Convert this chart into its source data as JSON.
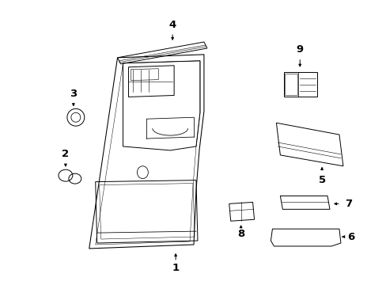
{
  "bg_color": "#ffffff",
  "fig_width": 4.89,
  "fig_height": 3.6,
  "dpi": 100,
  "line_color": "#000000",
  "font_size": 9.5,
  "lw": 0.7
}
